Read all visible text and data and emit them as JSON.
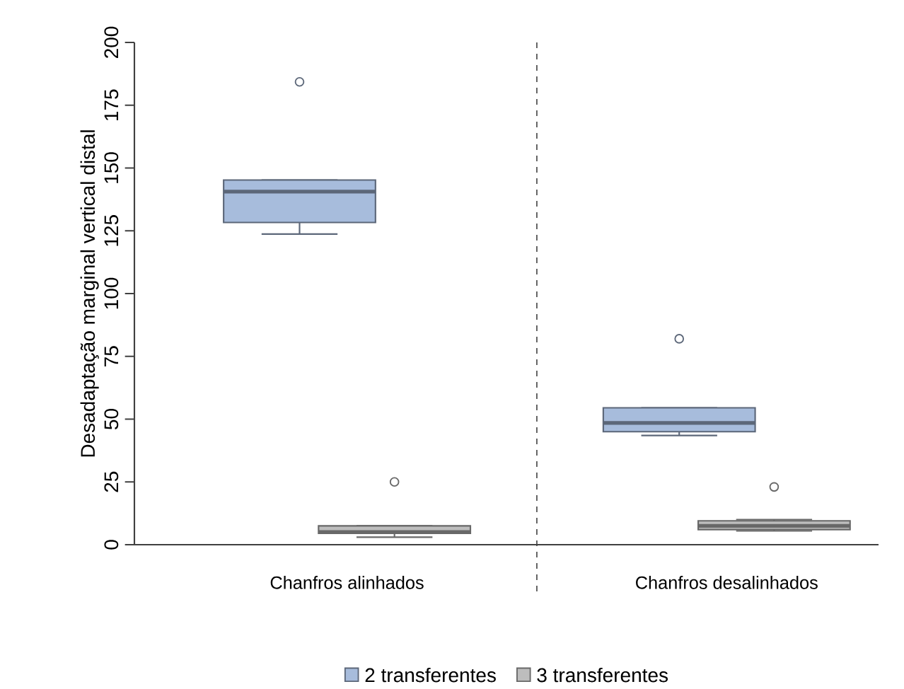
{
  "chart_data": {
    "type": "box",
    "ylabel": "Desadaptação marginal vertical distal",
    "categories": [
      "Chanfros alinhados",
      "Chanfros desalinhados"
    ],
    "series": [
      {
        "name": "2 transferentes",
        "color": "#a7bcdc",
        "boxes": [
          {
            "low": 123.7,
            "q1": 128.3,
            "median": 140.6,
            "q3": 145.2,
            "high": 145.2,
            "outliers": [
              184.3
            ]
          },
          {
            "low": 43.5,
            "q1": 45,
            "median": 48.5,
            "q3": 54.5,
            "high": 54.5,
            "outliers": [
              82
            ]
          }
        ]
      },
      {
        "name": "3 transferentes",
        "color": "#bdbdbd",
        "boxes": [
          {
            "low": 3,
            "q1": 4.5,
            "median": 5,
            "q3": 7.5,
            "high": 7.5,
            "outliers": [
              25
            ]
          },
          {
            "low": 5.5,
            "q1": 6,
            "median": 7.5,
            "q3": 9.5,
            "high": 10,
            "outliers": [
              23
            ]
          }
        ]
      }
    ],
    "ylim": [
      0,
      200
    ],
    "yticks": [
      0,
      25,
      50,
      75,
      100,
      125,
      150,
      175,
      200
    ],
    "legend": "bottom"
  }
}
